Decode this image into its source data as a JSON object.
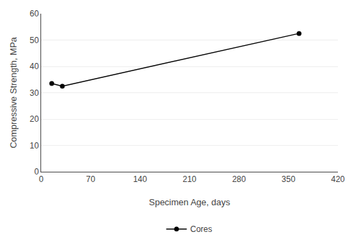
{
  "chart_data": {
    "type": "line",
    "xlabel": "Specimen Age, days",
    "ylabel": "Compressive Strength, MPa",
    "x": [
      15,
      30,
      365
    ],
    "series": [
      {
        "name": "Cores",
        "color": "#000000",
        "marker": "circle",
        "values": [
          33.5,
          32.5,
          52.5
        ]
      }
    ],
    "xlim": [
      0,
      420
    ],
    "ylim": [
      0,
      60
    ],
    "xticks": [
      0,
      70,
      140,
      210,
      280,
      350,
      420
    ],
    "yticks": [
      0,
      10,
      20,
      30,
      40,
      50,
      60
    ],
    "grid": "y",
    "legend": "bottom"
  }
}
